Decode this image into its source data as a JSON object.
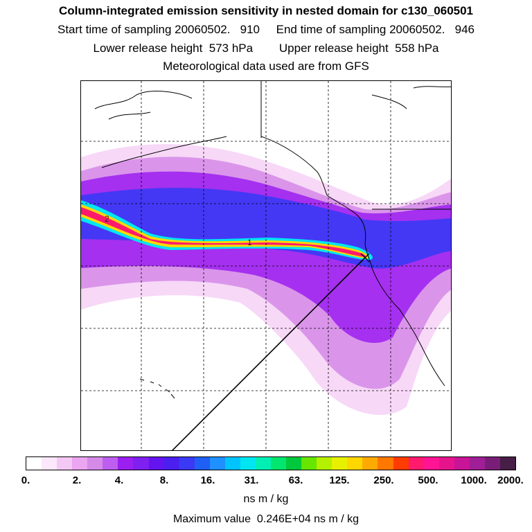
{
  "header": {
    "title": "Column-integrated emission sensitivity in nested domain for c130_060501",
    "sampling": "Start time of sampling 20060502.   910     End time of sampling 20060502.   946",
    "release": "Lower release height  573 hPa        Upper release height  558 hPa",
    "met": "Meteorological data used are from GFS"
  },
  "map": {
    "contour_labels": [
      "2",
      "1"
    ],
    "plume_colors": [
      "#f7d3f7",
      "#d58ae8",
      "#9b1ff0",
      "#4b1ff0",
      "#1f5ff5",
      "#00e6f0",
      "#ffd700",
      "#ff1a6e"
    ]
  },
  "colorbar": {
    "colors": [
      "#ffffff",
      "#fbe8fb",
      "#f4c8f4",
      "#eba5f1",
      "#d58ae8",
      "#bd5ef0",
      "#9b1ff0",
      "#7f1ff0",
      "#6414f0",
      "#4b1ff0",
      "#3a3af5",
      "#1f5ff5",
      "#1e90ff",
      "#00c4ff",
      "#00e6f0",
      "#00f0b4",
      "#00e66e",
      "#00c83c",
      "#66e600",
      "#b4f000",
      "#e6f000",
      "#ffd700",
      "#ffaa00",
      "#ff7800",
      "#ff3c00",
      "#ff1a6e",
      "#ff1493",
      "#e6148c",
      "#c81496",
      "#a01e96",
      "#781e78",
      "#461e46"
    ],
    "ticks": [
      "0.",
      "2.",
      "4.",
      "8.",
      "16.",
      "31.",
      "63.",
      "125.",
      "250.",
      "500.",
      "1000.",
      "2000."
    ],
    "units": "ns m / kg"
  },
  "footer": {
    "max_value": "Maximum value  0.246E+04 ns m / kg"
  }
}
